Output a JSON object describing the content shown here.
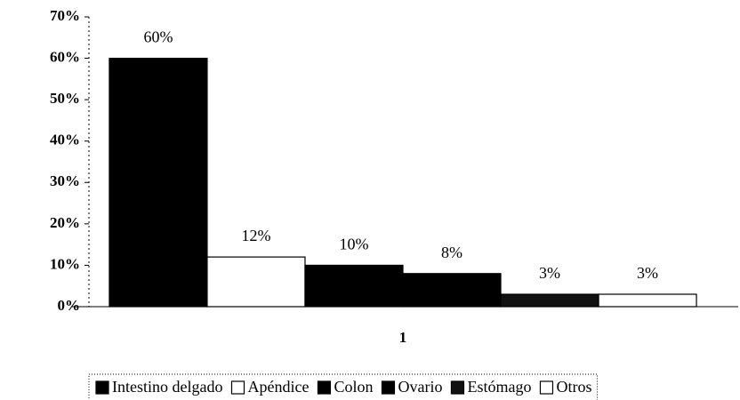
{
  "chart_data": {
    "type": "bar",
    "categories": [
      "1"
    ],
    "series": [
      {
        "name": "Intestino delgado",
        "color": "#000000",
        "values": [
          60
        ],
        "value_labels": [
          "60%"
        ]
      },
      {
        "name": "Apéndice",
        "color": "#ffffff",
        "values": [
          12
        ],
        "value_labels": [
          "12%"
        ]
      },
      {
        "name": "Colon",
        "color": "#000000",
        "values": [
          10
        ],
        "value_labels": [
          "10%"
        ]
      },
      {
        "name": "Ovario",
        "color": "#000000",
        "values": [
          8
        ],
        "value_labels": [
          "8%"
        ]
      },
      {
        "name": "Estómago",
        "color": "#111111",
        "values": [
          3
        ],
        "value_labels": [
          "3%"
        ]
      },
      {
        "name": "Otros",
        "color": "#ffffff",
        "values": [
          3
        ],
        "value_labels": [
          "3%"
        ]
      }
    ],
    "ylim": [
      0,
      70
    ],
    "yticks": [
      {
        "value": 0,
        "label": "0%"
      },
      {
        "value": 10,
        "label": "10%"
      },
      {
        "value": 20,
        "label": "20%"
      },
      {
        "value": 30,
        "label": "30%"
      },
      {
        "value": 40,
        "label": "40%"
      },
      {
        "value": 50,
        "label": "50%"
      },
      {
        "value": 60,
        "label": "60%"
      },
      {
        "value": 70,
        "label": "70%"
      }
    ],
    "legend": "bottom"
  }
}
